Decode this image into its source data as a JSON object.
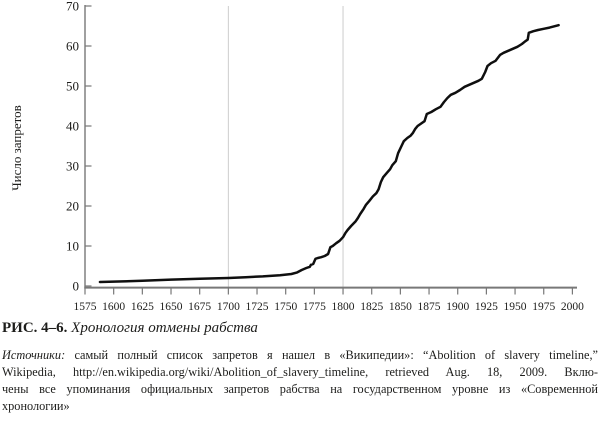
{
  "figure": {
    "caption_label": "РИС. 4–6.",
    "caption_title": "Хронология отмены рабства",
    "source_italic_prefix": "Источники:",
    "source_line1_rest": " самый полный список запретов я нашел в «Википедии»: “Abolition of slavery timeline,”",
    "source_line2": "Wikipedia, http://en.wikipedia.org/wiki/Abolition_of_slavery_timeline, retrieved Aug. 18, 2009. Вклю-",
    "source_line3": "чены все упоминания официальных запретов рабства на государственном уровне из «Современной",
    "source_line4": "хронологии»"
  },
  "colors": {
    "line": "#0f0f0f",
    "axis": "#787878",
    "grid": "#cccccc",
    "text": "#1d1d1b",
    "background": "#ffffff"
  },
  "chart_data": {
    "type": "line",
    "title": "",
    "xlabel": "",
    "ylabel": "Число запретов",
    "xlim": [
      1575,
      2000
    ],
    "ylim": [
      0,
      70
    ],
    "x_ticks": [
      1575,
      1600,
      1625,
      1650,
      1675,
      1700,
      1725,
      1750,
      1775,
      1800,
      1825,
      1850,
      1875,
      1900,
      1925,
      1950,
      1975,
      2000
    ],
    "y_ticks": [
      0,
      10,
      20,
      30,
      40,
      50,
      60,
      70
    ],
    "gridlines_x": [
      1700,
      1800
    ],
    "grid_horizontal": false,
    "legend": null,
    "series": [
      {
        "name": "Число запретов",
        "points": [
          [
            1588,
            1
          ],
          [
            1600,
            1.1
          ],
          [
            1625,
            1.3
          ],
          [
            1650,
            1.6
          ],
          [
            1675,
            1.8
          ],
          [
            1700,
            2
          ],
          [
            1715,
            2.2
          ],
          [
            1730,
            2.4
          ],
          [
            1745,
            2.7
          ],
          [
            1755,
            3
          ],
          [
            1760,
            3.4
          ],
          [
            1764,
            4
          ],
          [
            1768,
            4.5
          ],
          [
            1771,
            4.8
          ],
          [
            1772,
            5.3
          ],
          [
            1774,
            5.5
          ],
          [
            1776,
            6.8
          ],
          [
            1778,
            7
          ],
          [
            1781,
            7.2
          ],
          [
            1784,
            7.5
          ],
          [
            1787,
            8
          ],
          [
            1789,
            9.7
          ],
          [
            1791,
            10
          ],
          [
            1794,
            10.7
          ],
          [
            1797,
            11.3
          ],
          [
            1800,
            12.2
          ],
          [
            1802,
            13.2
          ],
          [
            1804,
            14
          ],
          [
            1807,
            15
          ],
          [
            1809,
            15.6
          ],
          [
            1811,
            16.2
          ],
          [
            1813,
            17
          ],
          [
            1815,
            18
          ],
          [
            1818,
            19.3
          ],
          [
            1820,
            20.3
          ],
          [
            1823,
            21.3
          ],
          [
            1826,
            22.4
          ],
          [
            1829,
            23.2
          ],
          [
            1831,
            24.2
          ],
          [
            1833,
            26
          ],
          [
            1835,
            27.2
          ],
          [
            1838,
            28.2
          ],
          [
            1841,
            29.2
          ],
          [
            1843,
            30.2
          ],
          [
            1846,
            31.2
          ],
          [
            1848,
            33.2
          ],
          [
            1851,
            35
          ],
          [
            1853,
            36.2
          ],
          [
            1856,
            37
          ],
          [
            1859,
            37.6
          ],
          [
            1861,
            38.3
          ],
          [
            1863,
            39.3
          ],
          [
            1865,
            40
          ],
          [
            1868,
            40.6
          ],
          [
            1871,
            41.2
          ],
          [
            1873,
            43
          ],
          [
            1877,
            43.5
          ],
          [
            1881,
            44.2
          ],
          [
            1885,
            44.8
          ],
          [
            1888,
            46
          ],
          [
            1891,
            47
          ],
          [
            1894,
            47.8
          ],
          [
            1898,
            48.3
          ],
          [
            1902,
            49
          ],
          [
            1906,
            49.8
          ],
          [
            1910,
            50.3
          ],
          [
            1914,
            50.8
          ],
          [
            1918,
            51.3
          ],
          [
            1921,
            51.8
          ],
          [
            1924,
            53.5
          ],
          [
            1926,
            55
          ],
          [
            1929,
            55.7
          ],
          [
            1933,
            56.3
          ],
          [
            1937,
            57.8
          ],
          [
            1940,
            58.3
          ],
          [
            1944,
            58.8
          ],
          [
            1948,
            59.3
          ],
          [
            1952,
            59.8
          ],
          [
            1956,
            60.5
          ],
          [
            1959,
            61.2
          ],
          [
            1961,
            61.6
          ],
          [
            1962,
            63.3
          ],
          [
            1966,
            63.7
          ],
          [
            1970,
            64
          ],
          [
            1975,
            64.3
          ],
          [
            1980,
            64.6
          ],
          [
            1988,
            65.2
          ]
        ]
      }
    ]
  }
}
